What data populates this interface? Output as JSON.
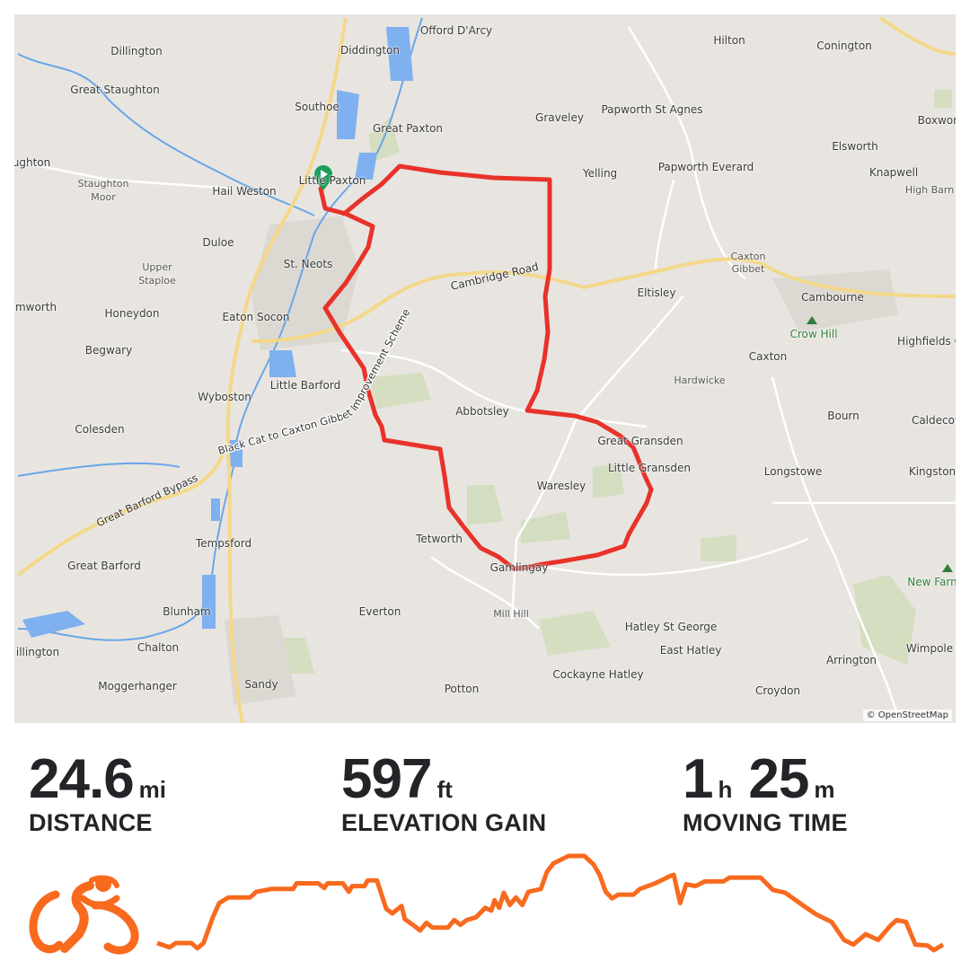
{
  "map": {
    "attribution": "© OpenStreetMap",
    "route_color": "#e8322a",
    "start_marker_color": "#1a9e5a",
    "labels": [
      "Offord D'Arcy",
      "Diddington",
      "Dillington",
      "Hilton",
      "Conington",
      "Great Staughton",
      "Southoe",
      "Graveley",
      "Papworth St Agnes",
      "Great Paxton",
      "Boxworth",
      "Elsworth",
      "ughton",
      "Little Paxton",
      "Yelling",
      "Papworth Everard",
      "Knapwell",
      "Staughton",
      "Moor",
      "Hail Weston",
      "High Barn",
      "Duloe",
      "St. Neots",
      "Caxton",
      "Gibbet",
      "Upper",
      "Staploe",
      "Cambourne",
      "Eltisley",
      "mworth",
      "Honeydon",
      "Eaton Socon",
      "Crow Hill",
      "Highfields C",
      "Begwary",
      "Caxton",
      "Wyboston",
      "Little Barford",
      "Hardwicke",
      "Abbotsley",
      "Bourn",
      "Caldecote",
      "Colesden",
      "Great Gransden",
      "Little Gransden",
      "Longstowe",
      "Kingston",
      "Waresley",
      "Tetworth",
      "Tempsford",
      "Great Barford",
      "Gamlingay",
      "New Farm",
      "Everton",
      "Blunham",
      "Mill Hill",
      "Hatley St George",
      "illington",
      "Chalton",
      "East Hatley",
      "Arrington",
      "Wimpole",
      "Cockayne Hatley",
      "Moggerhanger",
      "Sandy",
      "Potton",
      "Croydon"
    ],
    "road_labels": [
      "Cambridge Road",
      "Black Cat to Caxton Gibbet Improvement Scheme",
      "Great Barford Bypass"
    ]
  },
  "stats": {
    "distance": {
      "value": "24.6",
      "unit": "mi",
      "label": "DISTANCE"
    },
    "elevation": {
      "value": "597",
      "unit": "ft",
      "label": "ELEVATION GAIN"
    },
    "moving_time": {
      "hours": "1",
      "hours_unit": "h",
      "minutes": "25",
      "minutes_unit": "m",
      "label": "MOVING TIME"
    }
  },
  "activity_icon": "cyclist-icon",
  "accent_color": "#f86a1e",
  "elevation_profile": {
    "x_unit": "mi",
    "y_unit": "relative elevation (%)",
    "points": [
      [
        0,
        7.6
      ],
      [
        0.39,
        3
      ],
      [
        0.58,
        7.6
      ],
      [
        1.07,
        7.6
      ],
      [
        1.26,
        2.1
      ],
      [
        1.45,
        7.6
      ],
      [
        1.74,
        34.8
      ],
      [
        1.94,
        50
      ],
      [
        2.23,
        56
      ],
      [
        2.91,
        56
      ],
      [
        3.1,
        62
      ],
      [
        3.58,
        65
      ],
      [
        4.26,
        65
      ],
      [
        4.36,
        71
      ],
      [
        5.04,
        71
      ],
      [
        5.23,
        66
      ],
      [
        5.33,
        71
      ],
      [
        5.81,
        71
      ],
      [
        6.0,
        62
      ],
      [
        6.1,
        68
      ],
      [
        6.49,
        68
      ],
      [
        6.59,
        74
      ],
      [
        6.88,
        74
      ],
      [
        7.17,
        44
      ],
      [
        7.36,
        39
      ],
      [
        7.65,
        47
      ],
      [
        7.75,
        33
      ],
      [
        8.04,
        26
      ],
      [
        8.23,
        21
      ],
      [
        8.43,
        29
      ],
      [
        8.62,
        24
      ],
      [
        9.1,
        24
      ],
      [
        9.3,
        32
      ],
      [
        9.49,
        27
      ],
      [
        9.69,
        32
      ],
      [
        9.98,
        35
      ],
      [
        10.27,
        45
      ],
      [
        10.46,
        42
      ],
      [
        10.56,
        53
      ],
      [
        10.71,
        45
      ],
      [
        10.85,
        61
      ],
      [
        11.04,
        48
      ],
      [
        11.23,
        56
      ],
      [
        11.43,
        48
      ],
      [
        11.62,
        62
      ],
      [
        12.01,
        65
      ],
      [
        12.2,
        83
      ],
      [
        12.4,
        92
      ],
      [
        12.69,
        97
      ],
      [
        12.88,
        100
      ],
      [
        13.37,
        100
      ],
      [
        13.66,
        91
      ],
      [
        13.85,
        80
      ],
      [
        14.04,
        62
      ],
      [
        14.24,
        55
      ],
      [
        14.43,
        59
      ],
      [
        14.91,
        59
      ],
      [
        15.11,
        65
      ],
      [
        15.59,
        71
      ],
      [
        16.08,
        79
      ],
      [
        16.17,
        80
      ],
      [
        16.37,
        50
      ],
      [
        16.56,
        70
      ],
      [
        16.85,
        68
      ],
      [
        17.14,
        73
      ],
      [
        17.72,
        73
      ],
      [
        17.92,
        77
      ],
      [
        18.89,
        77
      ],
      [
        19.27,
        64
      ],
      [
        19.66,
        61
      ],
      [
        20.24,
        47
      ],
      [
        20.63,
        38
      ],
      [
        21.11,
        30
      ],
      [
        21.5,
        11
      ],
      [
        21.79,
        6
      ],
      [
        22.18,
        17
      ],
      [
        22.57,
        11
      ],
      [
        22.95,
        26
      ],
      [
        23.15,
        32
      ],
      [
        23.44,
        30
      ],
      [
        23.73,
        6
      ],
      [
        24.12,
        5
      ],
      [
        24.31,
        0
      ],
      [
        24.6,
        6
      ]
    ]
  }
}
